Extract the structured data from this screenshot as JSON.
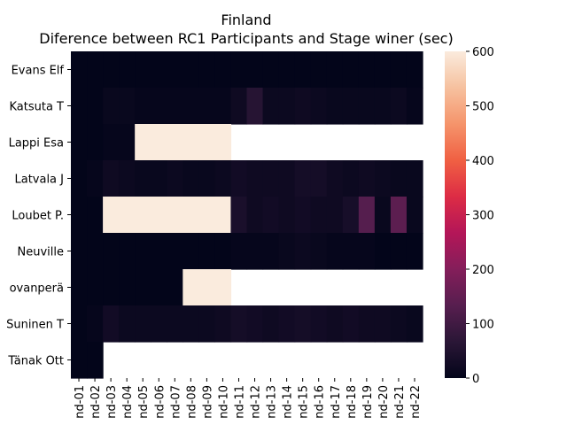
{
  "chart_data": {
    "type": "heatmap",
    "title": "Finland",
    "subtitle": "Diference between RC1 Participants and Stage winer (sec)",
    "xlabel": "",
    "ylabel": "",
    "y_categories": [
      "Evans  Elf",
      "Katsuta  T",
      "Lappi  Esa",
      "Latvala  J",
      "Loubet  P.",
      "Neuville   ",
      "ovanperä ",
      "Suninen  T",
      "Tänak  Ott"
    ],
    "x_categories": [
      "nd-01",
      "nd-02",
      "nd-03",
      "nd-04",
      "nd-05",
      "nd-06",
      "nd-07",
      "nd-08",
      "nd-09",
      "nd-10",
      "nd-11",
      "nd-12",
      "nd-13",
      "nd-14",
      "nd-15",
      "nd-16",
      "nd-17",
      "nd-18",
      "nd-19",
      "nd-20",
      "nd-21",
      "nd-22"
    ],
    "values": [
      [
        0,
        0,
        0,
        0,
        0,
        0,
        0,
        0,
        0,
        0,
        0,
        0,
        0,
        0,
        0,
        0,
        0,
        0,
        0,
        0,
        0,
        0
      ],
      [
        0,
        0,
        10,
        10,
        5,
        5,
        5,
        5,
        5,
        5,
        20,
        60,
        15,
        15,
        20,
        15,
        10,
        10,
        10,
        10,
        15,
        5
      ],
      [
        0,
        0,
        5,
        5,
        600,
        600,
        600,
        600,
        600,
        600,
        null,
        null,
        null,
        null,
        null,
        null,
        null,
        null,
        null,
        null,
        null,
        null
      ],
      [
        0,
        5,
        20,
        15,
        10,
        10,
        15,
        10,
        10,
        15,
        25,
        20,
        20,
        20,
        30,
        30,
        20,
        15,
        20,
        15,
        10,
        10
      ],
      [
        0,
        0,
        600,
        600,
        600,
        600,
        600,
        600,
        600,
        600,
        40,
        20,
        25,
        20,
        25,
        20,
        20,
        35,
        130,
        10,
        140,
        10
      ],
      [
        0,
        0,
        0,
        0,
        0,
        0,
        0,
        0,
        0,
        0,
        5,
        5,
        5,
        10,
        15,
        10,
        5,
        5,
        5,
        0,
        0,
        0
      ],
      [
        0,
        0,
        0,
        0,
        0,
        0,
        0,
        600,
        600,
        600,
        null,
        null,
        null,
        null,
        null,
        null,
        null,
        null,
        null,
        null,
        null,
        null
      ],
      [
        0,
        5,
        25,
        15,
        15,
        15,
        15,
        15,
        15,
        20,
        30,
        25,
        20,
        25,
        30,
        25,
        20,
        25,
        20,
        20,
        15,
        10
      ],
      [
        0,
        0,
        null,
        null,
        null,
        null,
        null,
        null,
        null,
        null,
        null,
        null,
        null,
        null,
        null,
        null,
        null,
        null,
        null,
        null,
        null,
        null
      ]
    ],
    "colorbar": {
      "min": 0,
      "max": 600,
      "ticks": [
        0,
        100,
        200,
        300,
        400,
        500,
        600
      ]
    },
    "colormap": [
      "#03051a",
      "#2a1636",
      "#571e4f",
      "#841e5a",
      "#b41658",
      "#dd2c45",
      "#f06043",
      "#f5946b",
      "#f6c19f",
      "#faebdd"
    ],
    "grid": false
  }
}
